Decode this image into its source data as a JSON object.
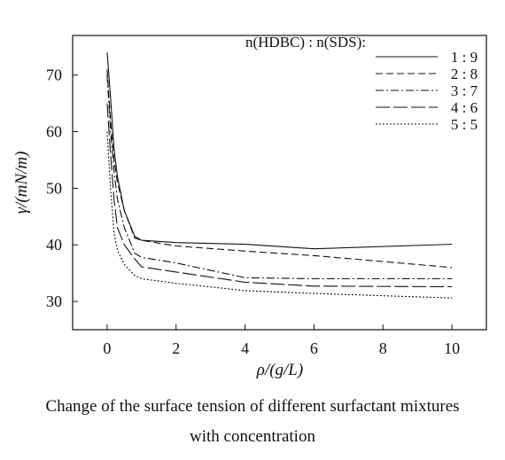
{
  "chart_data": {
    "type": "line",
    "xlabel": "ρ/(g/L)",
    "ylabel": "γ/(mN/m)",
    "xlim": [
      -1,
      11
    ],
    "ylim": [
      25,
      77
    ],
    "xticks": [
      0,
      2,
      4,
      6,
      8,
      10
    ],
    "yticks": [
      30,
      40,
      50,
      60,
      70
    ],
    "grid": false,
    "legend_position": "top-right",
    "legend_title": "n(HDBC) : n(SDS):",
    "series": [
      {
        "name": "1 : 9",
        "dash": "solid",
        "x": [
          0,
          0.1,
          0.2,
          0.3,
          0.5,
          0.8,
          1,
          2,
          4,
          6,
          10
        ],
        "y": [
          74,
          66,
          57,
          52,
          46,
          41.5,
          40.8,
          40.4,
          40.1,
          39.3,
          40.1
        ]
      },
      {
        "name": "2 : 8",
        "dash": "dashed",
        "x": [
          0,
          0.1,
          0.2,
          0.3,
          0.5,
          0.8,
          1,
          2,
          4,
          6,
          10
        ],
        "y": [
          71,
          62,
          55,
          51,
          46,
          41.2,
          40.8,
          39.8,
          38.9,
          38.1,
          36
        ]
      },
      {
        "name": "3 : 7",
        "dash": "dashdot",
        "x": [
          0,
          0.1,
          0.2,
          0.3,
          0.5,
          0.8,
          1,
          2,
          4,
          6,
          10
        ],
        "y": [
          70,
          60,
          53,
          48,
          43,
          38.5,
          37.8,
          36.8,
          34.2,
          34.0,
          34.0
        ]
      },
      {
        "name": "4 : 6",
        "dash": "longdash",
        "x": [
          0,
          0.1,
          0.2,
          0.3,
          0.5,
          0.8,
          1,
          2,
          4,
          6,
          10
        ],
        "y": [
          65,
          56,
          48,
          43,
          40,
          37.5,
          36.1,
          35.2,
          33.4,
          32.7,
          32.6
        ]
      },
      {
        "name": "5 : 5",
        "dash": "dotted",
        "x": [
          0,
          0.1,
          0.2,
          0.3,
          0.5,
          0.8,
          1,
          2,
          4,
          6,
          10
        ],
        "y": [
          60,
          50,
          42,
          39,
          36.5,
          34.6,
          34.0,
          33.2,
          31.9,
          31.4,
          30.6
        ]
      }
    ]
  },
  "caption": {
    "line1": "Change of the surface tension of different surfactant mixtures",
    "line2": "with concentration"
  }
}
